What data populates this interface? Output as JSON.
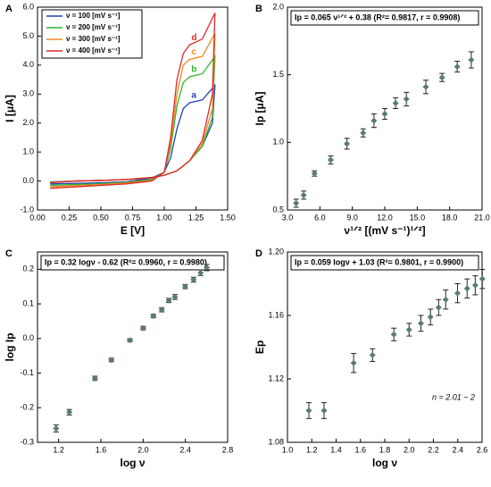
{
  "chart_data": [
    {
      "type": "line",
      "panel": "A",
      "xlabel": "E [V]",
      "ylabel": "I [μA]",
      "xlim": [
        0,
        1.5
      ],
      "xticks": [
        {
          "value": 0,
          "label": "0.00"
        },
        0.25,
        {
          "value": 0.5,
          "label": "0.50"
        },
        0.75,
        {
          "value": 1,
          "label": "1.00"
        },
        1.25,
        {
          "value": 1.5,
          "label": "1.50"
        }
      ],
      "ylim": [
        -1,
        6
      ],
      "yticks": [
        {
          "value": -1,
          "label": "-1.0"
        },
        {
          "value": 0,
          "label": "0.0"
        },
        {
          "value": 1,
          "label": "1.0"
        },
        {
          "value": 2,
          "label": "2.0"
        },
        {
          "value": 3,
          "label": "3.0"
        },
        {
          "value": 4,
          "label": "4.0"
        },
        {
          "value": 5,
          "label": "5.0"
        },
        {
          "value": 6,
          "label": "6.0"
        }
      ],
      "legend": "top-left",
      "x": [
        0.1,
        0.3,
        0.5,
        0.7,
        0.9,
        1.0,
        1.05,
        1.1,
        1.15,
        1.2,
        1.3,
        1.4,
        1.38,
        1.3,
        1.2,
        1.1,
        1.0,
        0.9,
        0.7,
        0.5,
        0.3,
        0.1
      ],
      "series": [
        {
          "name": "ν = 100 [mV s⁻¹]",
          "color": "#2a3fb5",
          "values": [
            -0.1,
            -0.08,
            -0.06,
            -0.03,
            0.1,
            0.3,
            0.8,
            1.8,
            2.5,
            2.7,
            2.8,
            3.3,
            2.0,
            1.2,
            0.7,
            0.35,
            0.2,
            0.12,
            0.05,
            0.02,
            0,
            -0.03
          ]
        },
        {
          "name": "ν = 200 [mV s⁻¹]",
          "color": "#2db52d",
          "values": [
            -0.15,
            -0.12,
            -0.09,
            -0.05,
            0.05,
            0.3,
            1.1,
            2.6,
            3.4,
            3.6,
            3.7,
            4.3,
            2.2,
            1.2,
            0.7,
            0.35,
            0.2,
            0.12,
            0.05,
            0.02,
            0,
            -0.04
          ]
        },
        {
          "name": "ν = 300 [mV s⁻¹]",
          "color": "#f08a24",
          "values": [
            -0.2,
            -0.16,
            -0.12,
            -0.07,
            0.02,
            0.3,
            1.3,
            3.0,
            4.0,
            4.2,
            4.3,
            5.1,
            2.5,
            1.3,
            0.7,
            0.35,
            0.2,
            0.12,
            0.05,
            0.02,
            0,
            -0.05
          ]
        },
        {
          "name": "ν = 400 [mV s⁻¹]",
          "color": "#e02828",
          "values": [
            -0.25,
            -0.2,
            -0.15,
            -0.1,
            0.0,
            0.3,
            1.5,
            3.5,
            4.4,
            4.7,
            4.9,
            5.8,
            3.0,
            1.4,
            0.7,
            0.35,
            0.2,
            0.12,
            0.05,
            0.02,
            0,
            -0.06
          ]
        }
      ],
      "curve_labels": [
        "a",
        "b",
        "c",
        "d"
      ]
    },
    {
      "type": "scatter",
      "panel": "B",
      "xlabel": "ν¹ᐟ² [(mV s⁻¹)¹ᐟ²]",
      "ylabel": "Ip [μA]",
      "annotation": "Ip = 0.065 ν¹ᐟ² + 0.38 (R²= 0.9817, r = 0.9908)",
      "xlim": [
        3,
        21
      ],
      "xticks": [
        {
          "value": 3,
          "label": "3.0"
        },
        {
          "value": 6,
          "label": "6.0"
        },
        {
          "value": 9,
          "label": "9.0"
        },
        {
          "value": 12,
          "label": "12.0"
        },
        {
          "value": 15,
          "label": "15.0"
        },
        {
          "value": 18,
          "label": "18.0"
        },
        {
          "value": 21,
          "label": "21.0"
        }
      ],
      "ylim": [
        0.5,
        2
      ],
      "yticks": [
        0.5,
        {
          "value": 1,
          "label": "1.0"
        },
        1.5,
        {
          "value": 2,
          "label": "2.0"
        }
      ],
      "color": "#5a7a78",
      "x": [
        3.8,
        4.5,
        5.5,
        7.0,
        8.5,
        10.0,
        11.0,
        12.0,
        13.0,
        14.0,
        15.8,
        17.3,
        18.7,
        20.0
      ],
      "values": [
        0.55,
        0.61,
        0.77,
        0.87,
        0.99,
        1.07,
        1.16,
        1.21,
        1.29,
        1.32,
        1.41,
        1.48,
        1.56,
        1.61
      ],
      "errors": [
        0.03,
        0.03,
        0.02,
        0.03,
        0.04,
        0.03,
        0.05,
        0.04,
        0.04,
        0.05,
        0.05,
        0.03,
        0.04,
        0.06
      ]
    },
    {
      "type": "scatter",
      "panel": "C",
      "xlabel": "log ν",
      "ylabel": "log Ip",
      "annotation": "Ip = 0.32 logν - 0.62 (R²= 0.9960, r = 0.9980)",
      "xlim": [
        1,
        2.8
      ],
      "xticks": [
        1.2,
        1.6,
        {
          "value": 2,
          "label": "2.0"
        },
        2.4,
        2.8
      ],
      "ylim": [
        -0.3,
        0.25
      ],
      "yticks": [
        -0.3,
        -0.2,
        -0.1,
        {
          "value": 0,
          "label": "0.0"
        },
        0.1,
        0.2
      ],
      "color": "#5a7a78",
      "x": [
        1.176,
        1.301,
        1.544,
        1.699,
        1.875,
        2.0,
        2.097,
        2.176,
        2.243,
        2.301,
        2.398,
        2.477,
        2.544,
        2.602
      ],
      "values": [
        -0.26,
        -0.213,
        -0.115,
        -0.062,
        -0.005,
        0.03,
        0.065,
        0.083,
        0.11,
        0.12,
        0.15,
        0.17,
        0.19,
        0.205
      ],
      "errors": [
        0.01,
        0.008,
        0.006,
        0.005,
        0.004,
        0.005,
        0.005,
        0.006,
        0.006,
        0.007,
        0.006,
        0.007,
        0.008,
        0.009
      ]
    },
    {
      "type": "scatter",
      "panel": "D",
      "xlabel": "log ν",
      "ylabel": "Ep",
      "annotation": "Ip = 0.059 logν + 1.03 (R²= 0.9801, r = 0.9900)",
      "note": "n = 2.01 ~ 2",
      "xlim": [
        1,
        2.6
      ],
      "xticks": [
        {
          "value": 1,
          "label": "1.0"
        },
        1.2,
        1.4,
        1.6,
        1.8,
        {
          "value": 2,
          "label": "2.0"
        },
        2.2,
        2.4,
        2.6
      ],
      "ylim": [
        1.08,
        1.2
      ],
      "yticks": [
        1.08,
        1.12,
        1.16,
        {
          "value": 1.2,
          "label": "1.20"
        }
      ],
      "color": "#5a7a78",
      "x": [
        1.176,
        1.301,
        1.544,
        1.699,
        1.875,
        2.0,
        2.097,
        2.176,
        2.243,
        2.301,
        2.398,
        2.477,
        2.544,
        2.602
      ],
      "values": [
        1.1,
        1.1,
        1.13,
        1.135,
        1.148,
        1.151,
        1.155,
        1.159,
        1.165,
        1.17,
        1.174,
        1.177,
        1.179,
        1.183
      ],
      "errors": [
        0.005,
        0.005,
        0.006,
        0.004,
        0.004,
        0.004,
        0.005,
        0.005,
        0.005,
        0.006,
        0.006,
        0.006,
        0.006,
        0.006
      ]
    }
  ]
}
